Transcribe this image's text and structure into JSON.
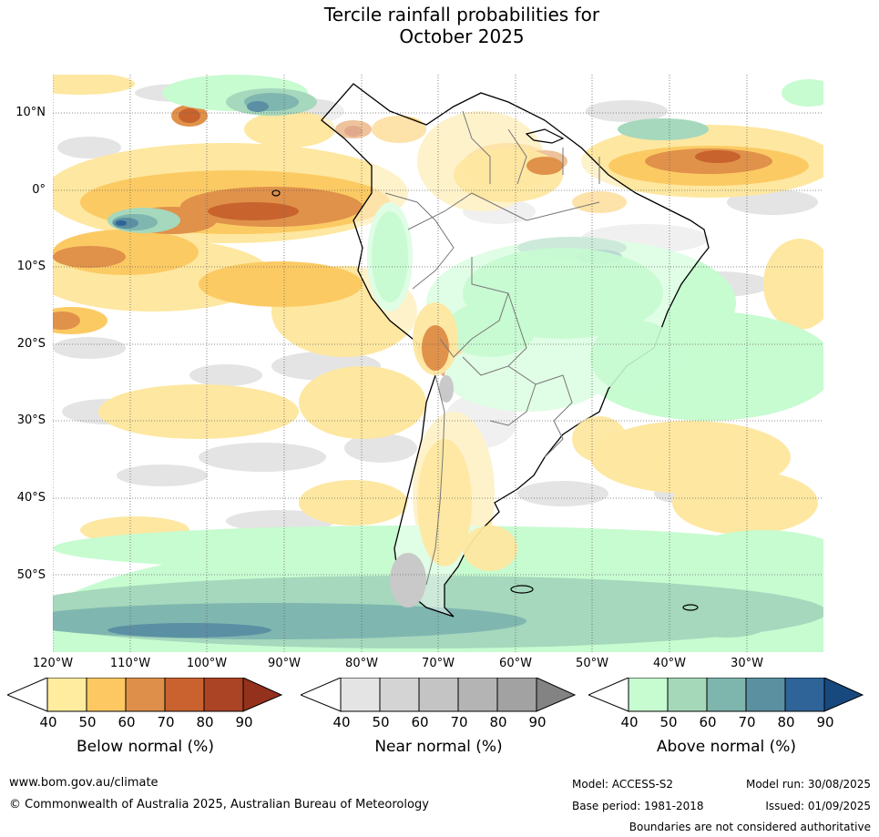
{
  "title": {
    "line1": "Tercile rainfall probabilities for",
    "line2": "October 2025"
  },
  "map": {
    "region": "South America and surrounding oceans",
    "lat_labels": [
      "10°N",
      "0°",
      "10°S",
      "20°S",
      "30°S",
      "40°S",
      "50°S"
    ],
    "lon_labels": [
      "120°W",
      "110°W",
      "100°W",
      "90°W",
      "80°W",
      "70°W",
      "60°W",
      "50°W",
      "40°W",
      "30°W"
    ],
    "lat_range": [
      15,
      -60
    ],
    "lon_range": [
      -120,
      -20
    ],
    "gridlines": true,
    "gridline_style": "dotted",
    "colors": {
      "below_50": "#fee7a0",
      "below_60": "#fcca63",
      "below_70": "#e0914a",
      "below_80": "#c8632e",
      "near_40": "#e4e4e4",
      "near_60": "#c9c9c9",
      "above_40": "#c7fbd0",
      "above_60": "#a5d8bc",
      "above_70": "#7fb6b0",
      "above_80": "#5b8fa3",
      "above_90": "#2f6498",
      "coast": "#000000",
      "borders": "#777777"
    }
  },
  "colorbars": [
    {
      "label": "Below normal (%)",
      "ticks": [
        "40",
        "50",
        "60",
        "70",
        "80",
        "90"
      ],
      "colors": [
        "#ffffff",
        "#ffec9e",
        "#fdc862",
        "#de904a",
        "#c9622f",
        "#ab4325",
        "#94311c"
      ]
    },
    {
      "label": "Near normal (%)",
      "ticks": [
        "40",
        "50",
        "60",
        "70",
        "80",
        "90"
      ],
      "colors": [
        "#ffffff",
        "#e4e4e4",
        "#d4d4d4",
        "#c4c4c4",
        "#b4b4b4",
        "#a2a2a2",
        "#838383"
      ]
    },
    {
      "label": "Above normal (%)",
      "ticks": [
        "40",
        "50",
        "60",
        "70",
        "80",
        "90"
      ],
      "colors": [
        "#ffffff",
        "#c7fbd0",
        "#a4d8b9",
        "#7eb5ad",
        "#5a90a0",
        "#2f6498",
        "#17497f"
      ]
    }
  ],
  "footer": {
    "website": "www.bom.gov.au/climate",
    "copyright": "© Commonwealth of Australia 2025, Australian Bureau of Meteorology",
    "model": "Model: ACCESS-S2",
    "base_period": "Base period: 1981-2018",
    "model_run": "Model run: 30/08/2025",
    "issued": "Issued: 01/09/2025",
    "disclaimer": "Boundaries are not considered authoritative"
  }
}
